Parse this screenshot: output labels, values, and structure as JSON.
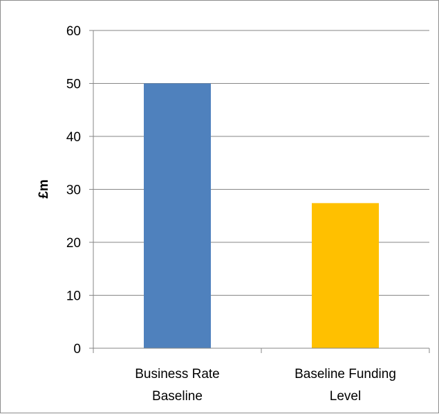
{
  "chart_data": {
    "type": "bar",
    "title": "",
    "xlabel": "",
    "ylabel": "£m",
    "ylim": [
      0,
      60
    ],
    "yticks": [
      0,
      10,
      20,
      30,
      40,
      50,
      60
    ],
    "ytick_labels": [
      "0",
      "10",
      "20",
      "30",
      "40",
      "50",
      "60"
    ],
    "grid": true,
    "legend": "none",
    "categories": [
      "Business Rate Baseline",
      "Baseline Funding Level"
    ],
    "category_label_lines": [
      [
        "Business Rate",
        "Baseline"
      ],
      [
        "Baseline Funding",
        "Level"
      ]
    ],
    "values": [
      50,
      27.4
    ],
    "colors": [
      "#4f81bd",
      "#ffc000"
    ]
  }
}
